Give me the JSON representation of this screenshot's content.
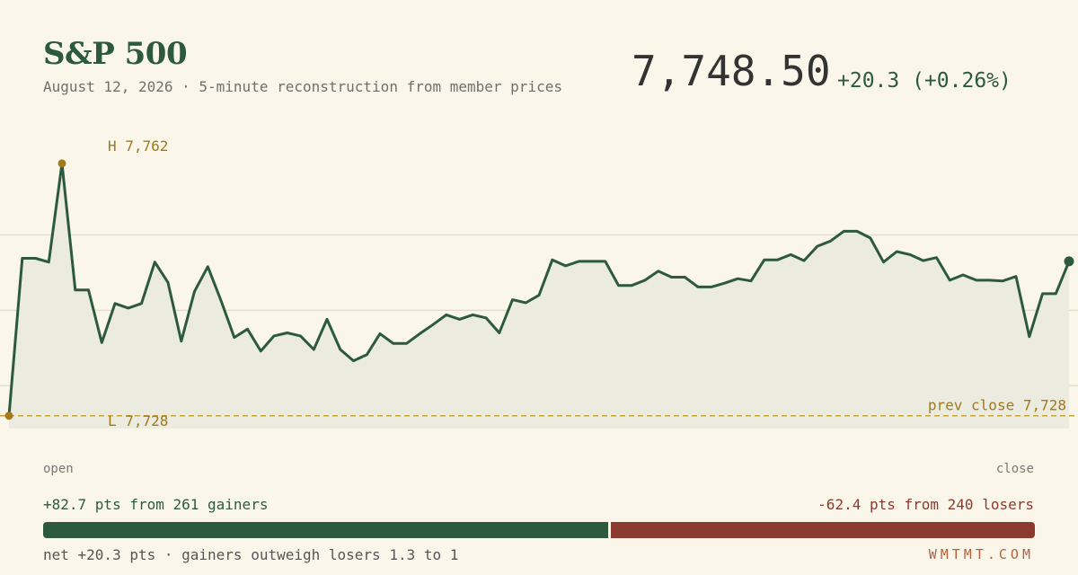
{
  "header": {
    "title": "S&P 500",
    "subtitle": "August 12, 2026 · 5-minute reconstruction from member prices",
    "price": "7,748.50",
    "change": "+20.3 (+0.26%)"
  },
  "colors": {
    "line": "#2d5a3d",
    "area": "#ecebdf",
    "marker": "#a07a1c",
    "prev_close": "#c9a43a",
    "gainers": "#2d5a3d",
    "losers": "#8b3a2f",
    "background": "#faf7ea"
  },
  "chart_data": {
    "type": "line",
    "title": "",
    "xlabel": "",
    "ylabel": "",
    "x_labels": {
      "start": "open",
      "end": "close"
    },
    "ylim": [
      7726.3,
      7766.5
    ],
    "grid": "horizontal",
    "series": [
      {
        "values": [
          7728.0,
          7748.9,
          7748.9,
          7748.4,
          7761.5,
          7744.7,
          7744.7,
          7737.7,
          7742.9,
          7742.3,
          7742.9,
          7748.4,
          7745.7,
          7737.9,
          7744.5,
          7747.8,
          7743.3,
          7738.4,
          7739.5,
          7736.6,
          7738.6,
          7739.0,
          7738.6,
          7736.8,
          7740.8,
          7736.8,
          7735.3,
          7736.1,
          7738.9,
          7737.6,
          7737.6,
          7738.9,
          7740.1,
          7741.4,
          7740.8,
          7741.4,
          7741.0,
          7739.0,
          7743.4,
          7743.0,
          7744.0,
          7748.7,
          7747.9,
          7748.5,
          7748.5,
          7748.5,
          7745.3,
          7745.3,
          7746.0,
          7747.2,
          7746.4,
          7746.4,
          7745.1,
          7745.1,
          7745.6,
          7746.2,
          7745.9,
          7748.7,
          7748.7,
          7749.4,
          7748.6,
          7750.5,
          7751.2,
          7752.5,
          7752.5,
          7751.6,
          7748.4,
          7749.8,
          7749.4,
          7748.6,
          7749.0,
          7746.0,
          7746.7,
          7746.0,
          7746.0,
          7745.9,
          7746.5,
          7738.5,
          7744.2,
          7744.2,
          7748.5
        ],
        "style": "line with shaded area"
      }
    ],
    "annotations": {
      "high": "H 7,762",
      "low": "L 7,728",
      "prev_close_label": "prev close 7,728",
      "prev_close_value": 7728
    }
  },
  "breadth": {
    "gainers_text": "+82.7 pts from 261 gainers",
    "losers_text": "-62.4 pts from 240 losers",
    "gainers_points": 82.7,
    "losers_points": 62.4
  },
  "footer": {
    "net_text": "net +20.3 pts · gainers outweigh losers 1.3 to 1",
    "brand": "WMTMT.COM"
  }
}
